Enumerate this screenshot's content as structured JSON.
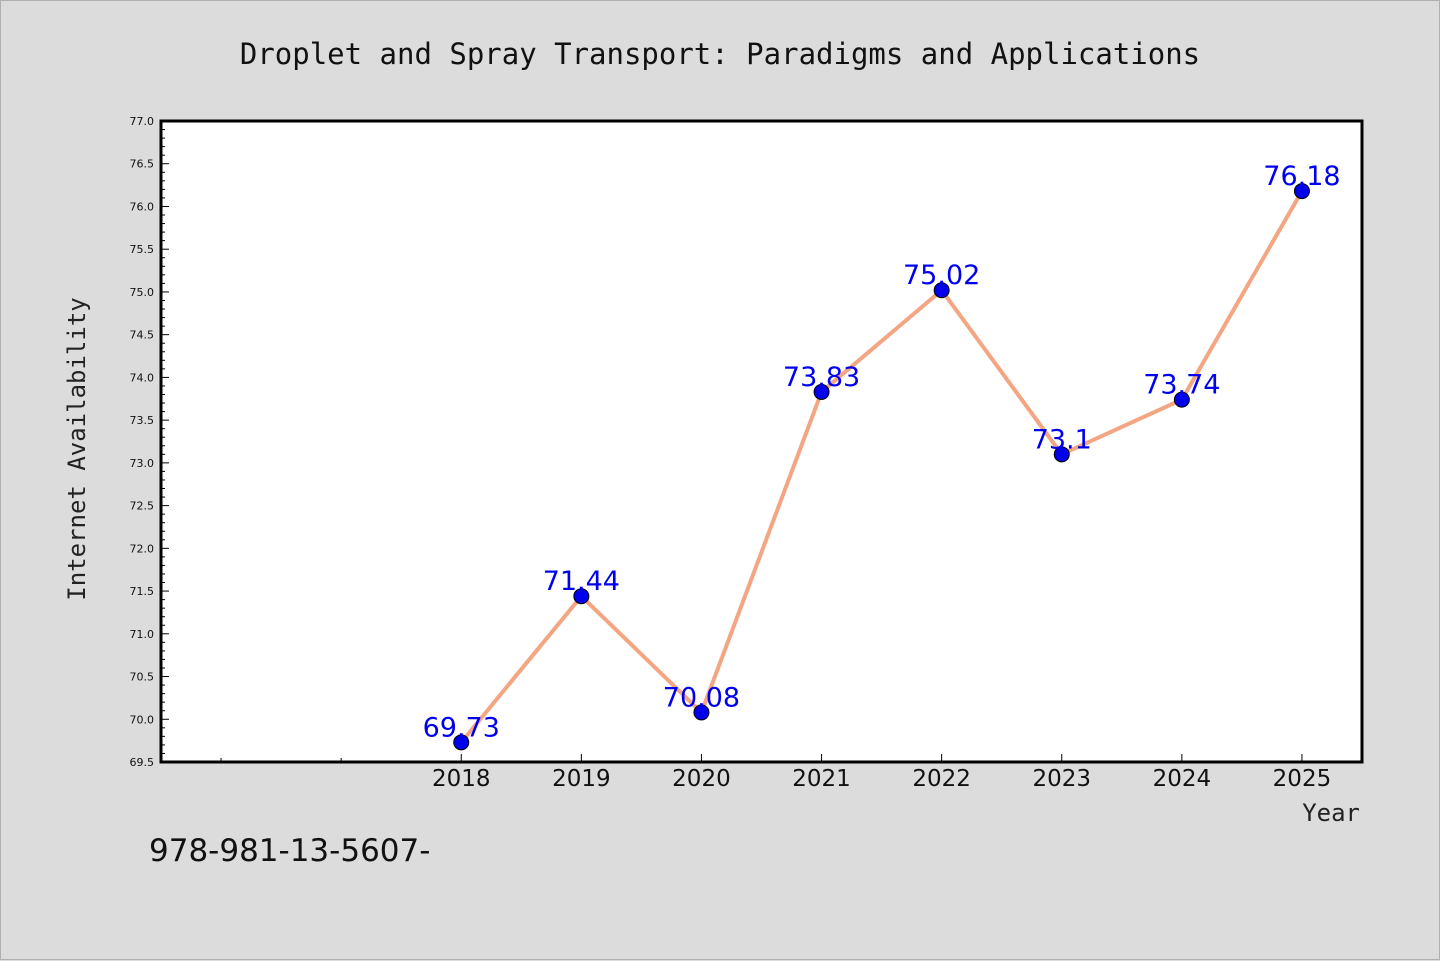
{
  "chart_data": {
    "type": "line",
    "title": "Droplet and Spray Transport: Paradigms and Applications",
    "xlabel": "Year",
    "ylabel": "Internet Availability",
    "ylim": [
      69.5,
      77.0
    ],
    "y_tick_step": 0.5,
    "y_minor_step": 0.1,
    "x_domain": [
      2015.5,
      2025.5
    ],
    "x_ticks": [
      2018,
      2019,
      2020,
      2021,
      2022,
      2023,
      2024,
      2025
    ],
    "x_minor_ticks": [
      2016,
      2017
    ],
    "series": [
      {
        "x": [
          2018,
          2019,
          2020,
          2021,
          2022,
          2023,
          2024,
          2025
        ],
        "values": [
          69.73,
          71.44,
          70.08,
          73.83,
          75.02,
          73.1,
          73.74,
          76.18
        ],
        "labels": [
          "69.73",
          "71.44",
          "70.08",
          "73.83",
          "75.02",
          "73.1",
          "73.74",
          "76.18"
        ],
        "line_color": "#f4a582",
        "marker_color": "#0000ee"
      }
    ],
    "grid": false,
    "legend": "none"
  },
  "footnote": "978-981-13-5607-",
  "colors": {
    "background": "#dcdcdc",
    "plot_background": "#ffffff",
    "line": "#f4a582",
    "marker": "#0000ee",
    "label": "#0000ee"
  }
}
